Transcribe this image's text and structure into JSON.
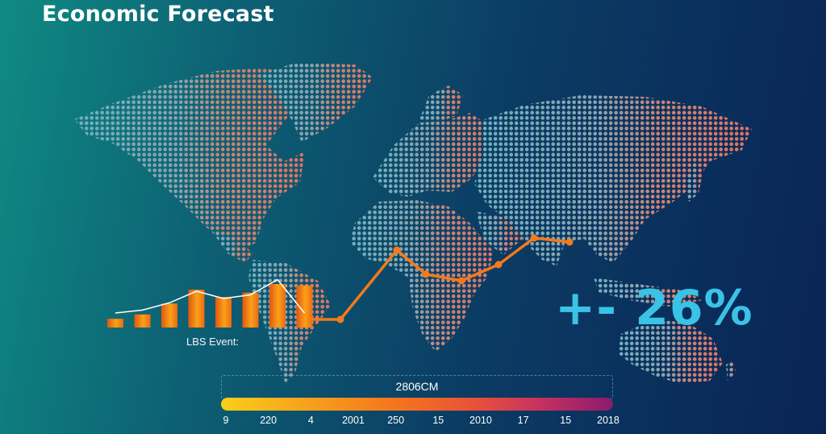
{
  "title": "Economic Forecast",
  "stat_value": "+- 26%",
  "series_label": "LBS Event:",
  "colors": {
    "background_start": "#0f8a83",
    "background_end": "#0a2456",
    "map_dots_west": "#63a9b8",
    "map_dots_east": "#e0766a",
    "bar": "#f47a1a",
    "line": "#f47a1a",
    "stat": "#39c3e6",
    "scale_start": "#f9cf1a",
    "scale_end": "#8a1b6e"
  },
  "color_scale": {
    "caption": "2806CM",
    "ticks": [
      "9",
      "220",
      "4",
      "2001",
      "250",
      "15",
      "2010",
      "17",
      "15",
      "2018"
    ]
  },
  "chart_data": [
    {
      "type": "bar",
      "values": [
        12,
        18,
        33,
        52,
        42,
        48,
        60,
        58
      ],
      "overlay_line": [
        20,
        24,
        34,
        50,
        40,
        45,
        66,
        20
      ]
    },
    {
      "type": "line",
      "values": [
        14,
        14,
        100,
        70,
        62,
        82,
        115,
        110
      ]
    }
  ]
}
